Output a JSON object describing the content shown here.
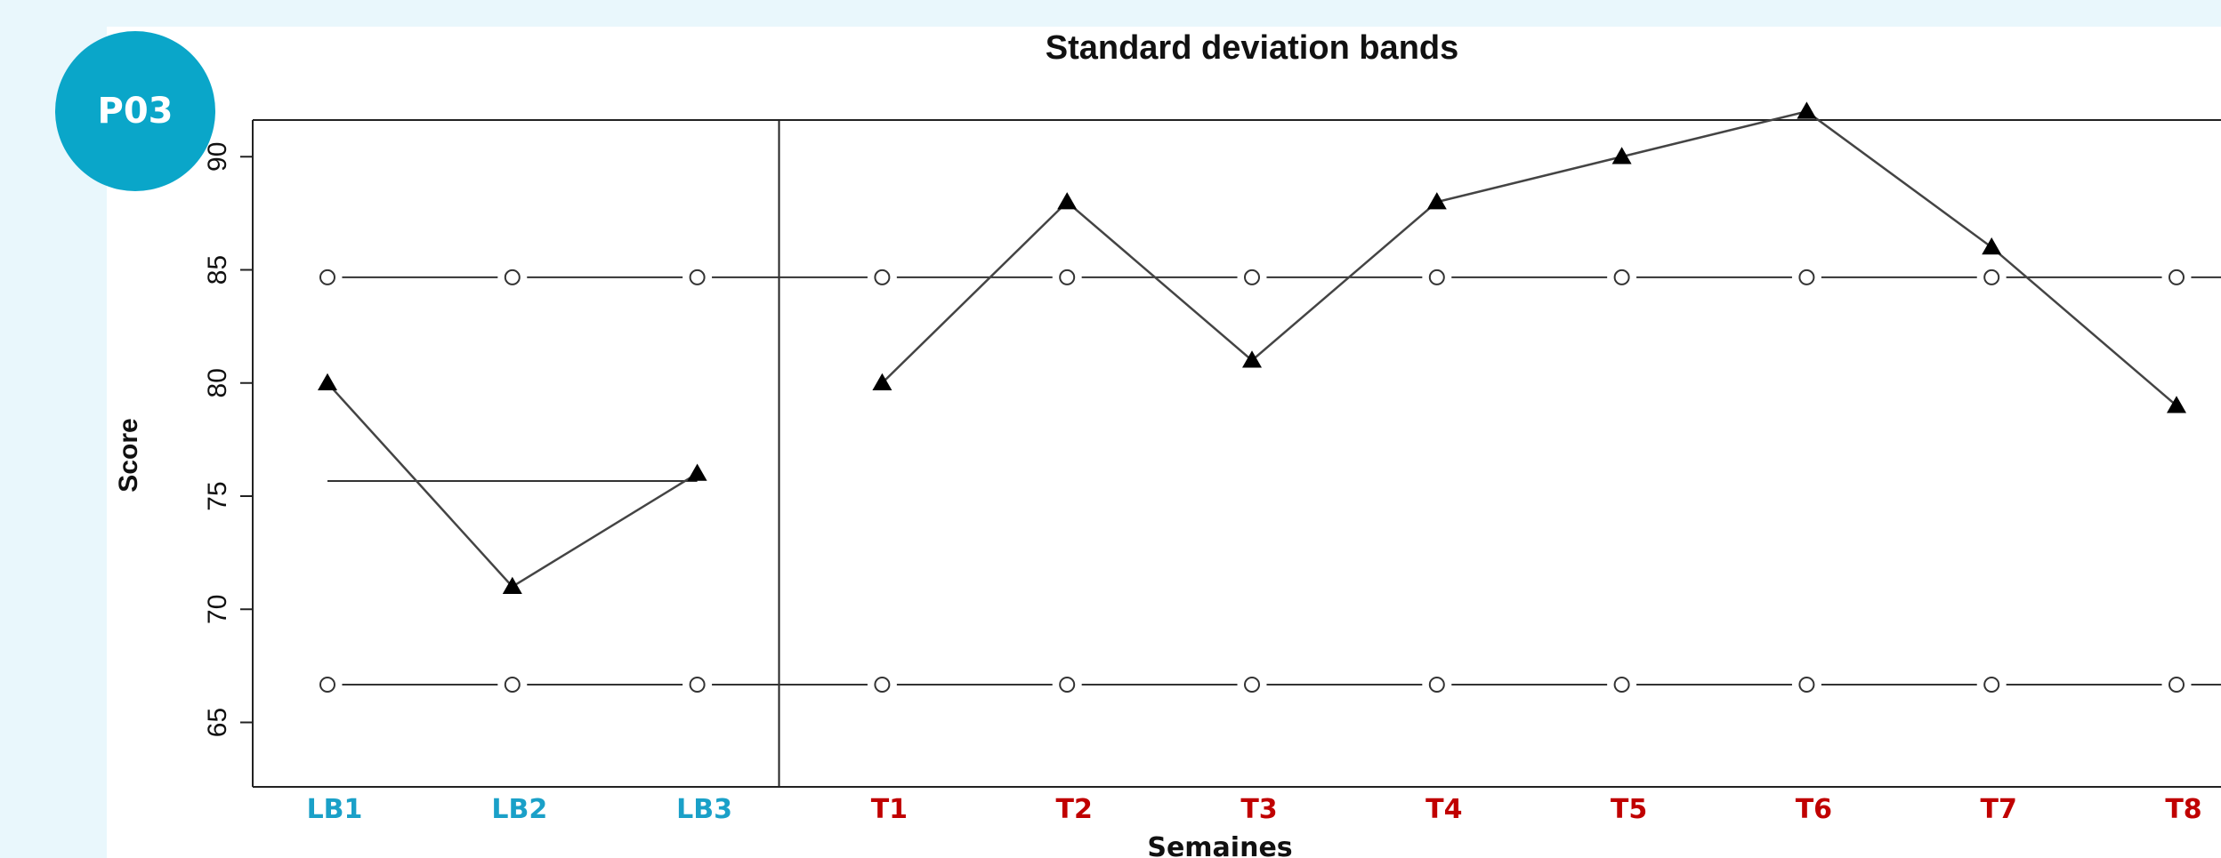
{
  "badge": {
    "label": "P03",
    "color": "#0aa6c9"
  },
  "chart_data": {
    "type": "line",
    "title": "Standard deviation bands",
    "xlabel": "Semaines",
    "ylabel": "Score",
    "categories": [
      "LB1",
      "LB2",
      "LB3",
      "T1",
      "T2",
      "T3",
      "T4",
      "T5",
      "T6",
      "T7",
      "T8"
    ],
    "category_colors": {
      "baseline": "#1aa0c8",
      "treatment": "#c00000"
    },
    "baseline_count": 3,
    "y_ticks": [
      "65",
      "70",
      "75",
      "80",
      "85",
      "90"
    ],
    "ylim": [
      65,
      93.5
    ],
    "series": [
      {
        "values": [
          80,
          71,
          76,
          80,
          88,
          81,
          88,
          90,
          92,
          86,
          79
        ],
        "marker": "triangle",
        "color": "#000000"
      }
    ],
    "reference_lines": {
      "baseline_mean": 75.67,
      "upper_band": 84.67,
      "lower_band": 66.67
    },
    "phase_divider_after": "LB3",
    "grid": false,
    "legend": "none"
  }
}
